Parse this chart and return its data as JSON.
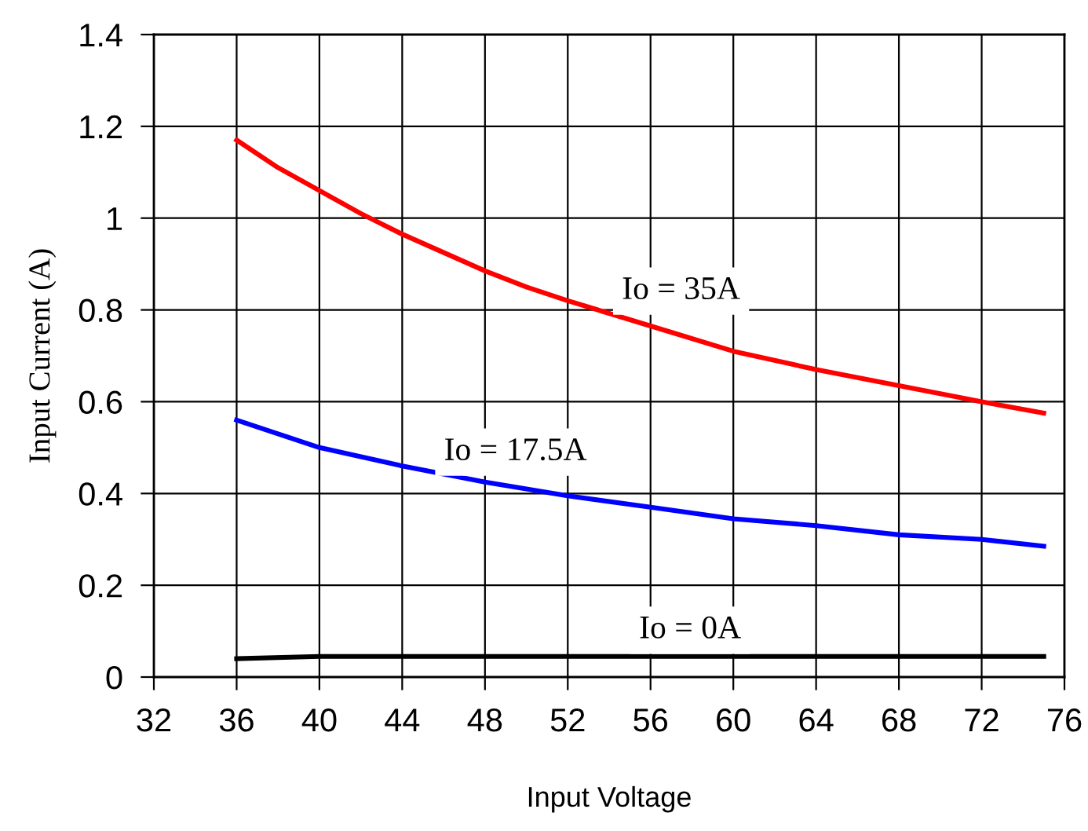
{
  "chart_data": {
    "type": "line",
    "xlabel": "Input Voltage",
    "ylabel": "Input Current (A)",
    "xlim": [
      32,
      76
    ],
    "xticks": [
      32,
      36,
      40,
      44,
      48,
      52,
      56,
      60,
      64,
      68,
      72,
      76
    ],
    "ylim": [
      0,
      1.4
    ],
    "yticks": [
      0,
      0.2,
      0.4,
      0.6,
      0.8,
      1,
      1.2,
      1.4
    ],
    "grid": true,
    "marker": "none",
    "line_style": "solid",
    "series": [
      {
        "name": "Io = 35A",
        "color": "#ff0000",
        "x": [
          36,
          38,
          40,
          42,
          44,
          48,
          50,
          52,
          56,
          60,
          64,
          68,
          72,
          75
        ],
        "values": [
          1.17,
          1.11,
          1.06,
          1.01,
          0.965,
          0.885,
          0.85,
          0.82,
          0.765,
          0.71,
          0.67,
          0.635,
          0.6,
          0.575
        ]
      },
      {
        "name": "Io = 17.5A",
        "color": "#0000ff",
        "x": [
          36,
          40,
          44,
          48,
          52,
          56,
          60,
          64,
          68,
          72,
          75
        ],
        "values": [
          0.56,
          0.5,
          0.46,
          0.425,
          0.395,
          0.37,
          0.345,
          0.33,
          0.31,
          0.3,
          0.285
        ]
      },
      {
        "name": "Io = 0A",
        "color": "#000000",
        "x": [
          36,
          40,
          75
        ],
        "values": [
          0.04,
          0.045,
          0.045
        ]
      }
    ]
  }
}
